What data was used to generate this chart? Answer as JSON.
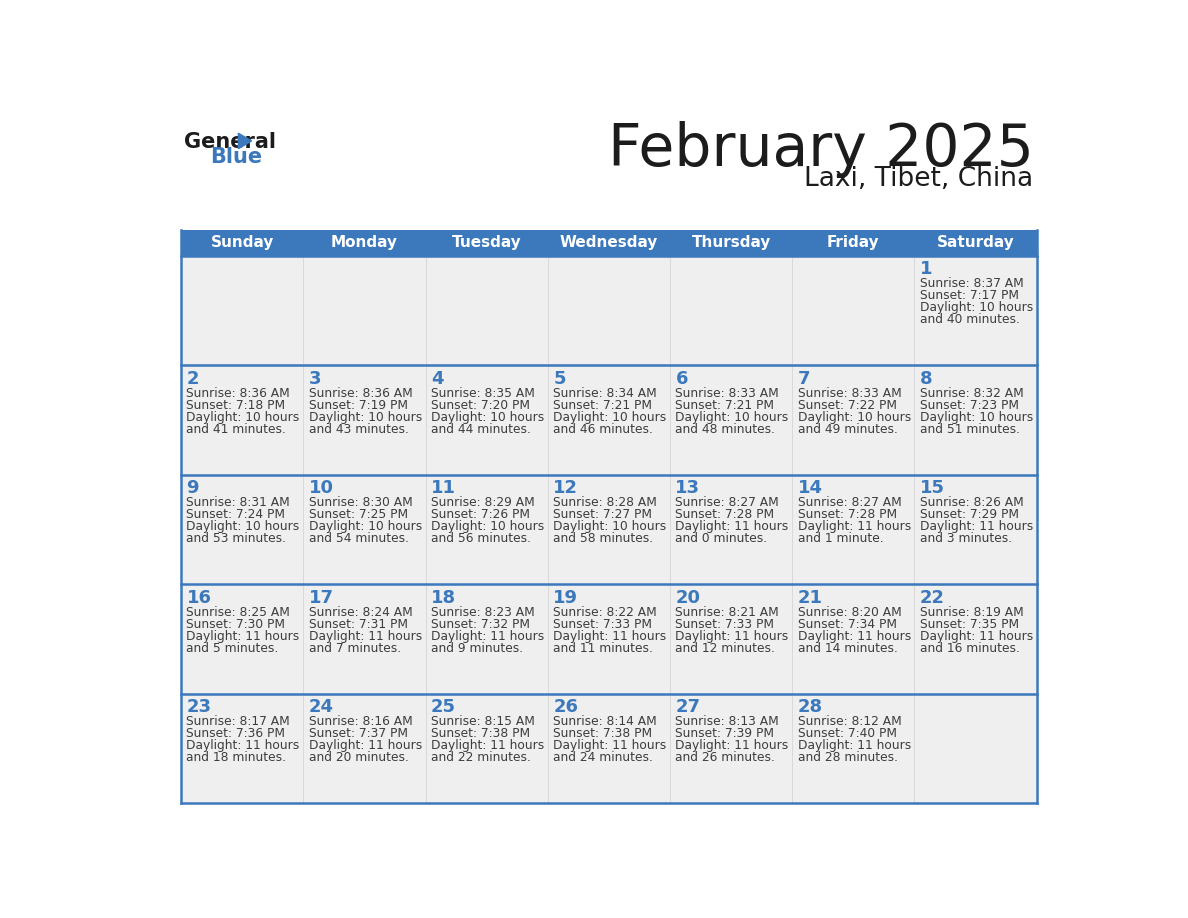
{
  "title": "February 2025",
  "subtitle": "Laxi, Tibet, China",
  "days_of_week": [
    "Sunday",
    "Monday",
    "Tuesday",
    "Wednesday",
    "Thursday",
    "Friday",
    "Saturday"
  ],
  "header_bg": "#3b78bc",
  "header_text": "#ffffff",
  "cell_bg": "#efefef",
  "cell_bg_white": "#ffffff",
  "border_color": "#3b78bc",
  "day_num_color": "#3b78bc",
  "text_color": "#3d3d3d",
  "line_color": "#3b78bc",
  "calendar_data": [
    [
      null,
      null,
      null,
      null,
      null,
      null,
      {
        "day": 1,
        "sunrise": "8:37 AM",
        "sunset": "7:17 PM",
        "daylight": "10 hours and 40 minutes."
      }
    ],
    [
      {
        "day": 2,
        "sunrise": "8:36 AM",
        "sunset": "7:18 PM",
        "daylight": "10 hours and 41 minutes."
      },
      {
        "day": 3,
        "sunrise": "8:36 AM",
        "sunset": "7:19 PM",
        "daylight": "10 hours and 43 minutes."
      },
      {
        "day": 4,
        "sunrise": "8:35 AM",
        "sunset": "7:20 PM",
        "daylight": "10 hours and 44 minutes."
      },
      {
        "day": 5,
        "sunrise": "8:34 AM",
        "sunset": "7:21 PM",
        "daylight": "10 hours and 46 minutes."
      },
      {
        "day": 6,
        "sunrise": "8:33 AM",
        "sunset": "7:21 PM",
        "daylight": "10 hours and 48 minutes."
      },
      {
        "day": 7,
        "sunrise": "8:33 AM",
        "sunset": "7:22 PM",
        "daylight": "10 hours and 49 minutes."
      },
      {
        "day": 8,
        "sunrise": "8:32 AM",
        "sunset": "7:23 PM",
        "daylight": "10 hours and 51 minutes."
      }
    ],
    [
      {
        "day": 9,
        "sunrise": "8:31 AM",
        "sunset": "7:24 PM",
        "daylight": "10 hours and 53 minutes."
      },
      {
        "day": 10,
        "sunrise": "8:30 AM",
        "sunset": "7:25 PM",
        "daylight": "10 hours and 54 minutes."
      },
      {
        "day": 11,
        "sunrise": "8:29 AM",
        "sunset": "7:26 PM",
        "daylight": "10 hours and 56 minutes."
      },
      {
        "day": 12,
        "sunrise": "8:28 AM",
        "sunset": "7:27 PM",
        "daylight": "10 hours and 58 minutes."
      },
      {
        "day": 13,
        "sunrise": "8:27 AM",
        "sunset": "7:28 PM",
        "daylight": "11 hours and 0 minutes."
      },
      {
        "day": 14,
        "sunrise": "8:27 AM",
        "sunset": "7:28 PM",
        "daylight": "11 hours and 1 minute."
      },
      {
        "day": 15,
        "sunrise": "8:26 AM",
        "sunset": "7:29 PM",
        "daylight": "11 hours and 3 minutes."
      }
    ],
    [
      {
        "day": 16,
        "sunrise": "8:25 AM",
        "sunset": "7:30 PM",
        "daylight": "11 hours and 5 minutes."
      },
      {
        "day": 17,
        "sunrise": "8:24 AM",
        "sunset": "7:31 PM",
        "daylight": "11 hours and 7 minutes."
      },
      {
        "day": 18,
        "sunrise": "8:23 AM",
        "sunset": "7:32 PM",
        "daylight": "11 hours and 9 minutes."
      },
      {
        "day": 19,
        "sunrise": "8:22 AM",
        "sunset": "7:33 PM",
        "daylight": "11 hours and 11 minutes."
      },
      {
        "day": 20,
        "sunrise": "8:21 AM",
        "sunset": "7:33 PM",
        "daylight": "11 hours and 12 minutes."
      },
      {
        "day": 21,
        "sunrise": "8:20 AM",
        "sunset": "7:34 PM",
        "daylight": "11 hours and 14 minutes."
      },
      {
        "day": 22,
        "sunrise": "8:19 AM",
        "sunset": "7:35 PM",
        "daylight": "11 hours and 16 minutes."
      }
    ],
    [
      {
        "day": 23,
        "sunrise": "8:17 AM",
        "sunset": "7:36 PM",
        "daylight": "11 hours and 18 minutes."
      },
      {
        "day": 24,
        "sunrise": "8:16 AM",
        "sunset": "7:37 PM",
        "daylight": "11 hours and 20 minutes."
      },
      {
        "day": 25,
        "sunrise": "8:15 AM",
        "sunset": "7:38 PM",
        "daylight": "11 hours and 22 minutes."
      },
      {
        "day": 26,
        "sunrise": "8:14 AM",
        "sunset": "7:38 PM",
        "daylight": "11 hours and 24 minutes."
      },
      {
        "day": 27,
        "sunrise": "8:13 AM",
        "sunset": "7:39 PM",
        "daylight": "11 hours and 26 minutes."
      },
      {
        "day": 28,
        "sunrise": "8:12 AM",
        "sunset": "7:40 PM",
        "daylight": "11 hours and 28 minutes."
      },
      null
    ]
  ]
}
